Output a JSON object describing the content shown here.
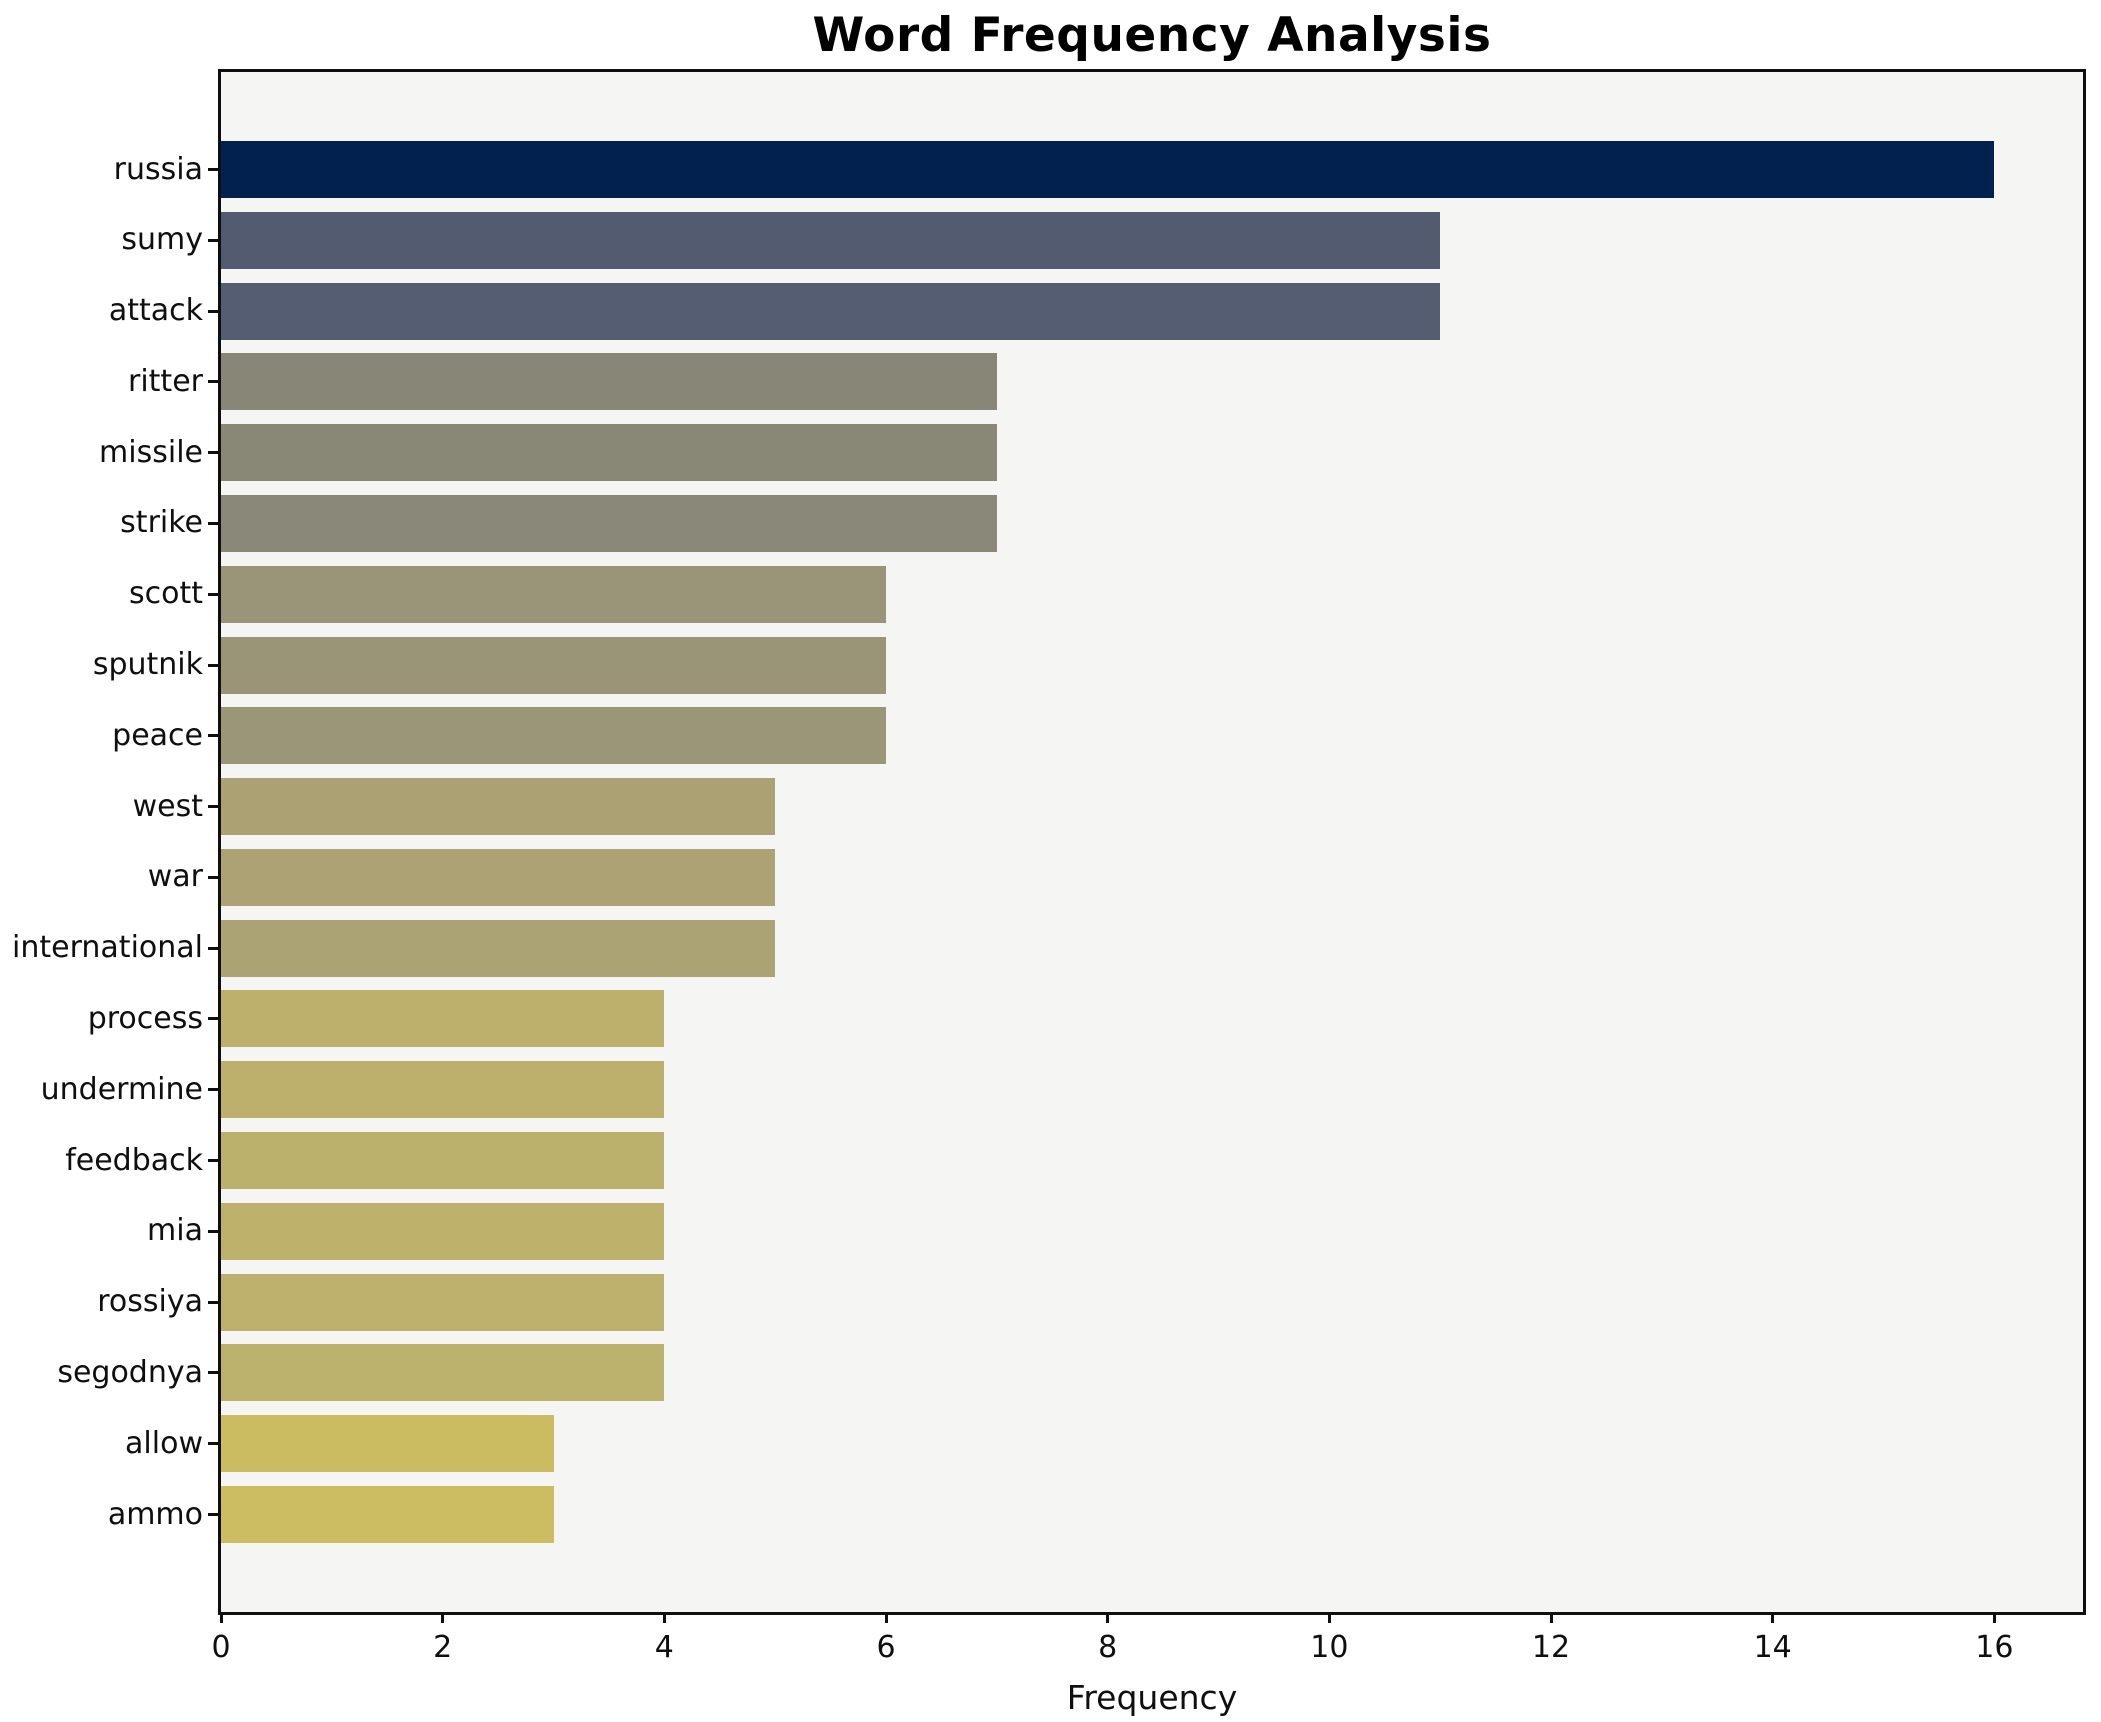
{
  "chart_data": {
    "type": "bar",
    "orientation": "horizontal",
    "title": "Word Frequency Analysis",
    "xlabel": "Frequency",
    "ylabel": "",
    "categories": [
      "russia",
      "sumy",
      "attack",
      "ritter",
      "missile",
      "strike",
      "scott",
      "sputnik",
      "peace",
      "west",
      "war",
      "international",
      "process",
      "undermine",
      "feedback",
      "mia",
      "rossiya",
      "segodnya",
      "allow",
      "ammo"
    ],
    "values": [
      16,
      11,
      11,
      7,
      7,
      7,
      6,
      6,
      6,
      5,
      5,
      5,
      4,
      4,
      4,
      4,
      4,
      4,
      3,
      3
    ],
    "bar_colors": [
      "#02214E",
      "#535B71",
      "#555D72",
      "#888677",
      "#898877",
      "#8A8878",
      "#9A9478",
      "#9B9578",
      "#9C9678",
      "#ABA173",
      "#ACA273",
      "#ACA374",
      "#BCB06C",
      "#BCB06C",
      "#BCB06D",
      "#BDB16C",
      "#BDB16D",
      "#BDB26D",
      "#CCBC61",
      "#CCBC62"
    ],
    "x_ticks": [
      0,
      2,
      4,
      6,
      8,
      10,
      12,
      14,
      16
    ],
    "xlim": [
      0,
      16.8
    ],
    "grid": false,
    "legend": null,
    "plot_background": "#F5F5F4",
    "figure_background": "#ffffff",
    "spine_color": "#0f0f0f"
  }
}
